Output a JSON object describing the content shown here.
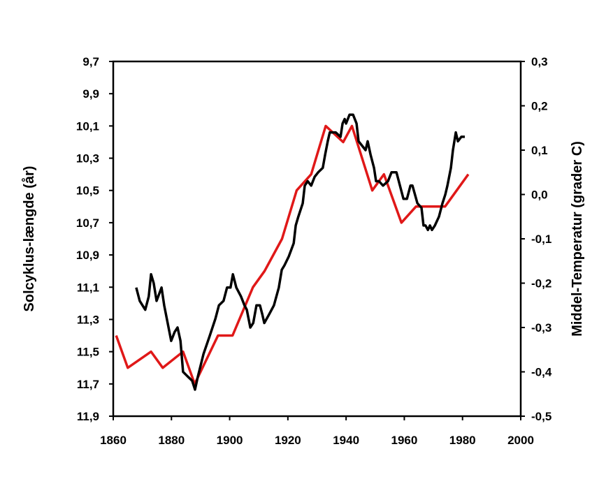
{
  "chart_data": {
    "type": "line",
    "title": "",
    "xlabel": "",
    "ylabel_left": "Solcyklus-længde (år)",
    "ylabel_right": "Middel-Temperatur (grader C)",
    "xlim": [
      1860,
      2000
    ],
    "ylim_left": [
      9.7,
      11.9
    ],
    "ylim_left_inverted": true,
    "ylim_right": [
      -0.5,
      0.3
    ],
    "x_ticks": [
      "1860",
      "1880",
      "1900",
      "1920",
      "1940",
      "1960",
      "1980",
      "2000"
    ],
    "y_ticks_left": [
      "9,7",
      "9,9",
      "10,1",
      "10,3",
      "10,5",
      "10,7",
      "10,9",
      "11,1",
      "11,3",
      "11,5",
      "11,7",
      "11,9"
    ],
    "y_ticks_right": [
      "0,3",
      "0,2",
      "0,1",
      "0,0",
      "-0,1",
      "-0,2",
      "-0,3",
      "-0,4",
      "-0,5"
    ],
    "grid": false,
    "series": [
      {
        "axis": "left",
        "color": "#e01818",
        "points": [
          [
            1861,
            11.4
          ],
          [
            1865,
            11.6
          ],
          [
            1873,
            11.5
          ],
          [
            1877,
            11.6
          ],
          [
            1884,
            11.5
          ],
          [
            1888,
            11.7
          ],
          [
            1896,
            11.4
          ],
          [
            1901,
            11.4
          ],
          [
            1908,
            11.1
          ],
          [
            1912,
            11.0
          ],
          [
            1918,
            10.8
          ],
          [
            1923,
            10.5
          ],
          [
            1928,
            10.4
          ],
          [
            1933,
            10.1
          ],
          [
            1939,
            10.2
          ],
          [
            1942,
            10.1
          ],
          [
            1949,
            10.5
          ],
          [
            1953,
            10.4
          ],
          [
            1959,
            10.7
          ],
          [
            1964,
            10.6
          ],
          [
            1974,
            10.6
          ],
          [
            1982,
            10.4
          ]
        ]
      },
      {
        "axis": "right",
        "color": "#000000",
        "points": [
          [
            1867.9,
            -0.21
          ],
          [
            1869.1,
            -0.24
          ],
          [
            1871.0,
            -0.26
          ],
          [
            1872.2,
            -0.23
          ],
          [
            1873.0,
            -0.18
          ],
          [
            1873.9,
            -0.2
          ],
          [
            1874.9,
            -0.24
          ],
          [
            1876.6,
            -0.21
          ],
          [
            1877.5,
            -0.25
          ],
          [
            1879.9,
            -0.33
          ],
          [
            1881.1,
            -0.31
          ],
          [
            1882.1,
            -0.3
          ],
          [
            1883.1,
            -0.33
          ],
          [
            1884.0,
            -0.4
          ],
          [
            1885.5,
            -0.41
          ],
          [
            1887.1,
            -0.42
          ],
          [
            1888.1,
            -0.44
          ],
          [
            1889.1,
            -0.41
          ],
          [
            1891.0,
            -0.36
          ],
          [
            1893.1,
            -0.32
          ],
          [
            1895.1,
            -0.28
          ],
          [
            1896.3,
            -0.25
          ],
          [
            1897.9,
            -0.24
          ],
          [
            1899.1,
            -0.21
          ],
          [
            1900.3,
            -0.21
          ],
          [
            1901.1,
            -0.18
          ],
          [
            1902.3,
            -0.21
          ],
          [
            1903.9,
            -0.23
          ],
          [
            1905.1,
            -0.25
          ],
          [
            1905.9,
            -0.26
          ],
          [
            1907.1,
            -0.3
          ],
          [
            1908.1,
            -0.29
          ],
          [
            1909.2,
            -0.25
          ],
          [
            1910.4,
            -0.25
          ],
          [
            1911.2,
            -0.27
          ],
          [
            1911.9,
            -0.29
          ],
          [
            1913.6,
            -0.27
          ],
          [
            1915.2,
            -0.25
          ],
          [
            1916.9,
            -0.21
          ],
          [
            1917.9,
            -0.17
          ],
          [
            1918.8,
            -0.16
          ],
          [
            1920.3,
            -0.14
          ],
          [
            1922.0,
            -0.11
          ],
          [
            1922.7,
            -0.07
          ],
          [
            1923.6,
            -0.05
          ],
          [
            1925.1,
            -0.02
          ],
          [
            1925.8,
            0.02
          ],
          [
            1926.8,
            0.03
          ],
          [
            1928.0,
            0.02
          ],
          [
            1929.2,
            0.04
          ],
          [
            1930.4,
            0.05
          ],
          [
            1932.0,
            0.06
          ],
          [
            1932.8,
            0.09
          ],
          [
            1933.7,
            0.12
          ],
          [
            1934.4,
            0.14
          ],
          [
            1935.2,
            0.14
          ],
          [
            1936.4,
            0.14
          ],
          [
            1938.1,
            0.13
          ],
          [
            1938.8,
            0.16
          ],
          [
            1939.5,
            0.17
          ],
          [
            1940.0,
            0.16
          ],
          [
            1941.2,
            0.18
          ],
          [
            1942.4,
            0.18
          ],
          [
            1943.6,
            0.16
          ],
          [
            1944.3,
            0.12
          ],
          [
            1945.5,
            0.11
          ],
          [
            1946.7,
            0.1
          ],
          [
            1947.4,
            0.12
          ],
          [
            1948.4,
            0.09
          ],
          [
            1949.6,
            0.06
          ],
          [
            1950.3,
            0.03
          ],
          [
            1951.3,
            0.03
          ],
          [
            1952.7,
            0.02
          ],
          [
            1954.4,
            0.03
          ],
          [
            1955.6,
            0.05
          ],
          [
            1957.3,
            0.05
          ],
          [
            1958.5,
            0.02
          ],
          [
            1959.7,
            -0.01
          ],
          [
            1960.9,
            -0.01
          ],
          [
            1962.1,
            0.02
          ],
          [
            1962.8,
            0.02
          ],
          [
            1964.5,
            -0.02
          ],
          [
            1965.9,
            -0.03
          ],
          [
            1966.6,
            -0.07
          ],
          [
            1967.3,
            -0.07
          ],
          [
            1968.1,
            -0.08
          ],
          [
            1968.8,
            -0.07
          ],
          [
            1969.5,
            -0.08
          ],
          [
            1970.5,
            -0.07
          ],
          [
            1971.9,
            -0.05
          ],
          [
            1973.1,
            -0.02
          ],
          [
            1974.1,
            0.0
          ],
          [
            1974.8,
            0.02
          ],
          [
            1976.0,
            0.06
          ],
          [
            1976.7,
            0.1
          ],
          [
            1977.7,
            0.14
          ],
          [
            1978.4,
            0.12
          ],
          [
            1979.6,
            0.13
          ],
          [
            1980.8,
            0.13
          ]
        ]
      }
    ]
  }
}
